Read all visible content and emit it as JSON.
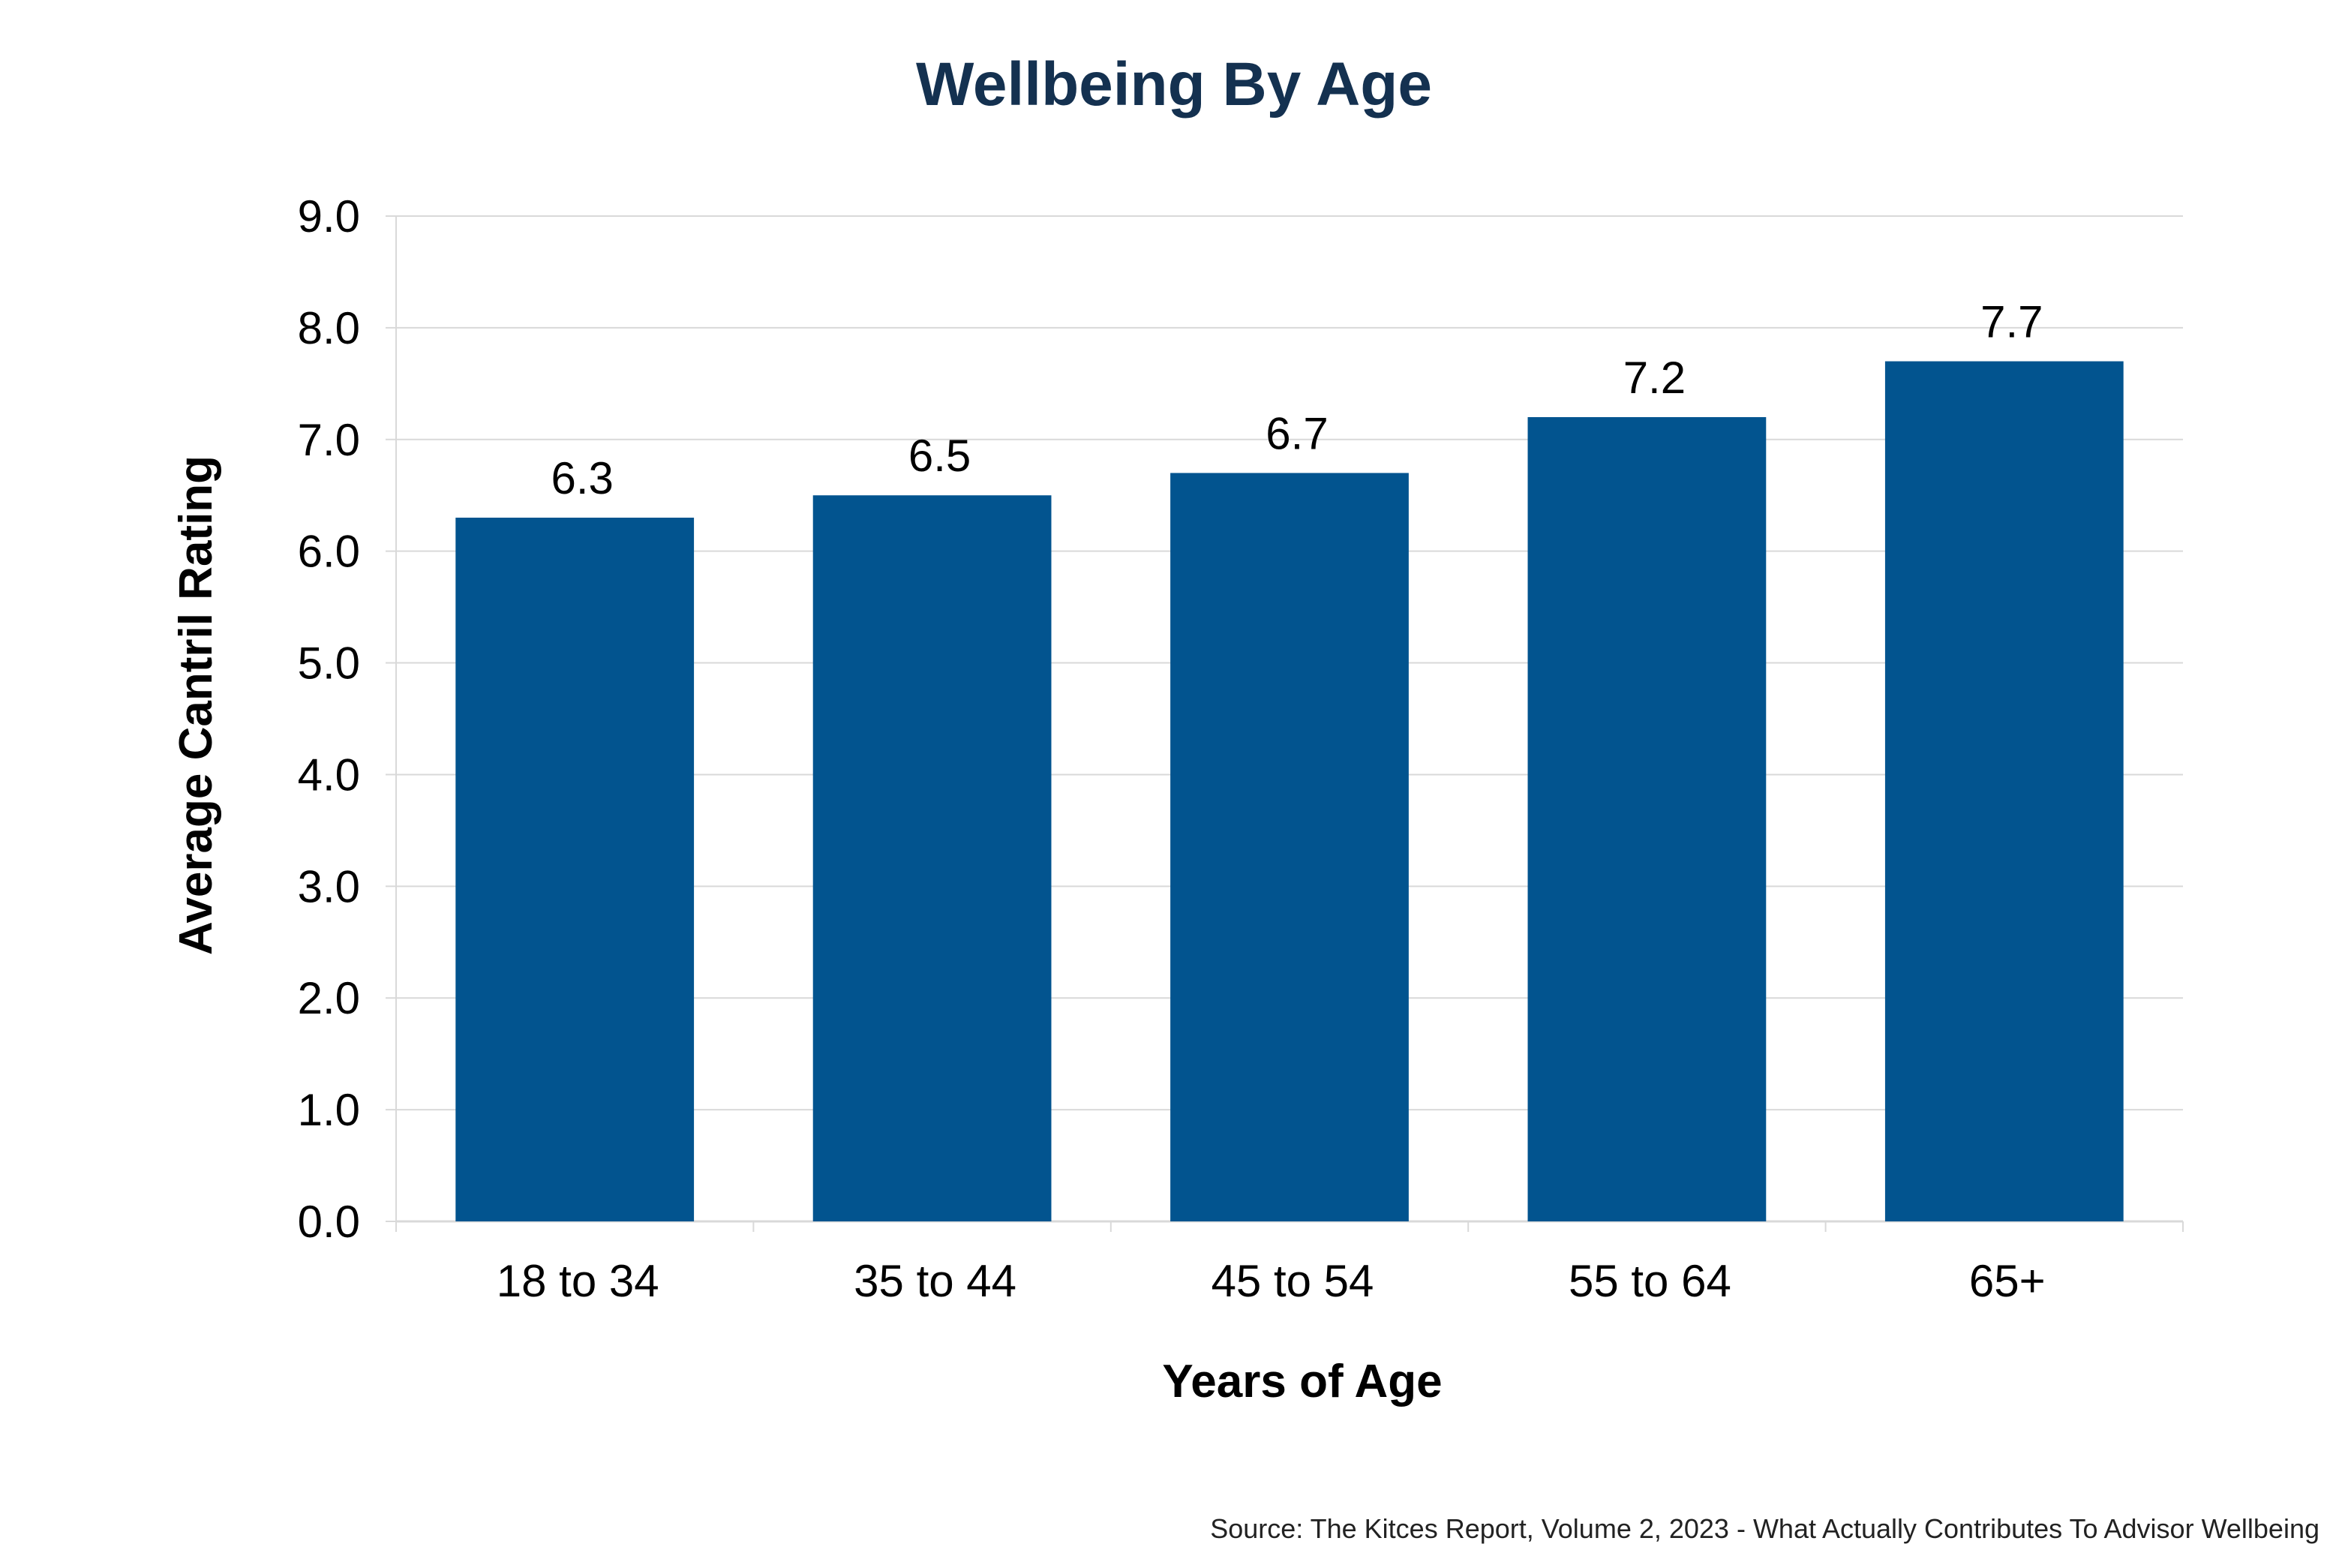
{
  "chart_data": {
    "type": "bar",
    "title": "Wellbeing By Age",
    "xlabel": "Years of Age",
    "ylabel": "Average Cantril Rating",
    "categories": [
      "18 to 34",
      "35 to 44",
      "45 to 54",
      "55 to 64",
      "65+"
    ],
    "values": [
      6.3,
      6.5,
      6.7,
      7.2,
      7.7
    ],
    "data_labels": [
      "6.3",
      "6.5",
      "6.7",
      "7.2",
      "7.7"
    ],
    "ylim": [
      0,
      9
    ],
    "yticks": [
      "0.0",
      "1.0",
      "2.0",
      "3.0",
      "4.0",
      "5.0",
      "6.0",
      "7.0",
      "8.0",
      "9.0"
    ],
    "grid": true,
    "legend": "none",
    "bar_color": "#02548F",
    "title_color": "#143150",
    "gridline_color": "#D9D9D9"
  },
  "source": "Source: The Kitces Report, Volume 2, 2023 - What Actually Contributes To Advisor Wellbeing"
}
